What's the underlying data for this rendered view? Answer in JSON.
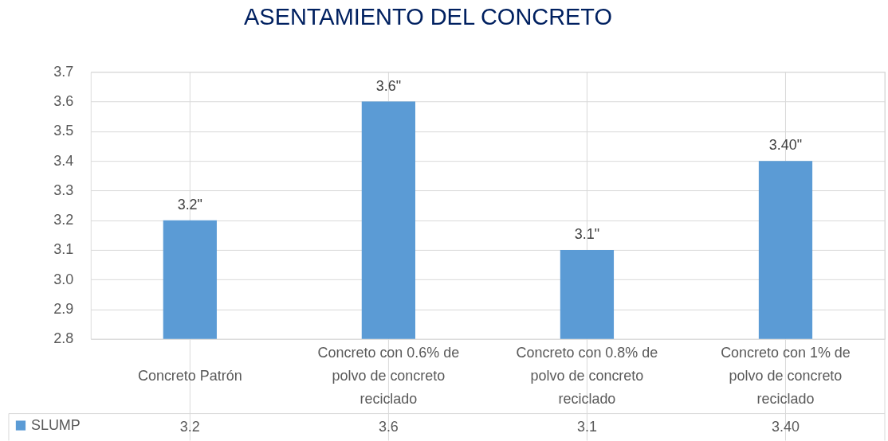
{
  "chart_data": {
    "type": "bar",
    "title": "ASENTAMIENTO DEL CONCRETO",
    "categories": [
      "Concreto Patrón",
      "Concreto con 0.6% de polvo de concreto reciclado",
      "Concreto con 0.8% de polvo de concreto reciclado",
      "Concreto con 1% de polvo de concreto reciclado"
    ],
    "series": [
      {
        "name": "SLUMP",
        "color": "#5b9bd5",
        "values": [
          3.2,
          3.6,
          3.1,
          3.4
        ],
        "value_labels": [
          "3.2\"",
          "3.6\"",
          "3.1\"",
          "3.40\""
        ]
      }
    ],
    "ylim": [
      2.8,
      3.7
    ],
    "yticks": [
      2.8,
      2.9,
      {
        "value": 3,
        "label": "3.0"
      },
      3.1,
      3.2,
      3.3,
      3.4,
      3.5,
      3.6,
      3.7
    ],
    "grid": true,
    "legend": "bottom left",
    "annotations": [
      "3.2",
      "3.6",
      "3.1",
      "3.40"
    ]
  }
}
